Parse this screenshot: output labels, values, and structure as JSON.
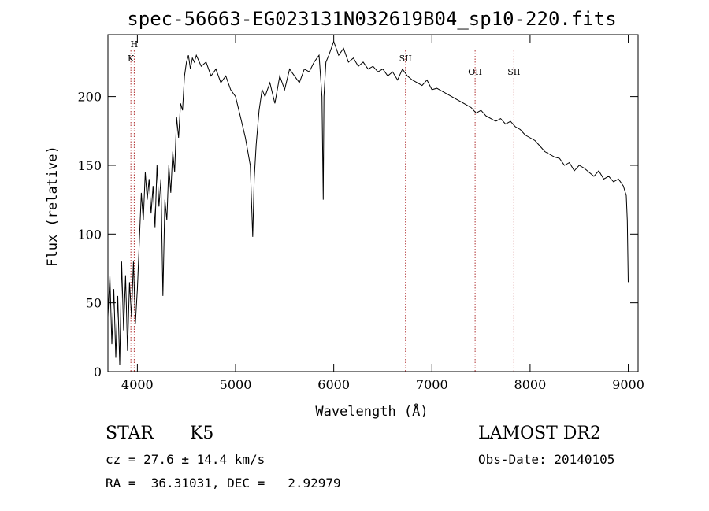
{
  "chart_data": {
    "type": "line",
    "title": "spec-56663-EG023131N032619B04_sp10-220.fits",
    "xlabel": "Wavelength (Å)",
    "ylabel": "Flux (relative)",
    "xlim": [
      3700,
      9100
    ],
    "ylim": [
      0,
      245
    ],
    "x_ticks": [
      4000,
      5000,
      6000,
      7000,
      8000,
      9000
    ],
    "y_ticks": [
      0,
      50,
      100,
      150,
      200
    ],
    "grid": false,
    "series": [
      {
        "x": [
          3700,
          3720,
          3740,
          3760,
          3780,
          3800,
          3820,
          3840,
          3860,
          3880,
          3900,
          3920,
          3940,
          3960,
          3980,
          4000,
          4020,
          4040,
          4060,
          4080,
          4100,
          4120,
          4140,
          4160,
          4180,
          4200,
          4220,
          4240,
          4260,
          4280,
          4300,
          4320,
          4340,
          4360,
          4380,
          4400,
          4420,
          4440,
          4460,
          4480,
          4500,
          4520,
          4540,
          4560,
          4580,
          4600,
          4650,
          4700,
          4750,
          4800,
          4850,
          4900,
          4950,
          5000,
          5050,
          5100,
          5150,
          5175,
          5190,
          5210,
          5240,
          5270,
          5300,
          5350,
          5400,
          5450,
          5500,
          5550,
          5600,
          5650,
          5700,
          5750,
          5800,
          5850,
          5880,
          5893,
          5900,
          5920,
          5950,
          6000,
          6050,
          6100,
          6150,
          6200,
          6250,
          6300,
          6350,
          6400,
          6450,
          6500,
          6550,
          6600,
          6650,
          6700,
          6750,
          6800,
          6850,
          6900,
          6950,
          7000,
          7050,
          7100,
          7150,
          7200,
          7250,
          7300,
          7350,
          7400,
          7450,
          7500,
          7550,
          7600,
          7650,
          7700,
          7750,
          7800,
          7850,
          7900,
          7950,
          8000,
          8050,
          8100,
          8150,
          8200,
          8250,
          8300,
          8350,
          8400,
          8450,
          8500,
          8550,
          8600,
          8650,
          8700,
          8750,
          8800,
          8850,
          8900,
          8950,
          8980,
          8990,
          9000
        ],
        "y": [
          40,
          70,
          20,
          60,
          10,
          55,
          5,
          80,
          30,
          70,
          15,
          65,
          40,
          80,
          35,
          60,
          95,
          130,
          110,
          145,
          125,
          140,
          115,
          135,
          105,
          150,
          120,
          140,
          55,
          125,
          110,
          150,
          130,
          160,
          145,
          185,
          170,
          195,
          190,
          215,
          225,
          230,
          220,
          228,
          225,
          230,
          222,
          225,
          215,
          220,
          210,
          215,
          205,
          200,
          185,
          170,
          150,
          98,
          140,
          165,
          190,
          205,
          200,
          210,
          195,
          215,
          205,
          220,
          215,
          210,
          220,
          218,
          225,
          230,
          200,
          125,
          200,
          225,
          230,
          240,
          230,
          235,
          225,
          228,
          222,
          225,
          220,
          222,
          218,
          220,
          215,
          218,
          212,
          220,
          215,
          212,
          210,
          208,
          212,
          205,
          206,
          204,
          202,
          200,
          198,
          196,
          194,
          192,
          188,
          190,
          186,
          184,
          182,
          184,
          180,
          182,
          178,
          176,
          172,
          170,
          168,
          164,
          160,
          158,
          156,
          155,
          150,
          152,
          146,
          150,
          148,
          145,
          142,
          146,
          140,
          142,
          138,
          140,
          135,
          128,
          110,
          65
        ]
      }
    ],
    "annotations": [
      {
        "label": "H",
        "x": 3968
      },
      {
        "label": "K",
        "x": 3934
      },
      {
        "label": "SII",
        "x": 6731
      },
      {
        "label": "OII",
        "x": 7440
      },
      {
        "label": "SII",
        "x": 7835
      }
    ]
  },
  "info": {
    "object_type": "STAR",
    "subclass": "K5",
    "survey": "LAMOST DR2",
    "cz": "cz = 27.6 ± 14.4 km/s",
    "obs_date": "Obs-Date: 20140105",
    "radec": "RA =  36.31031, DEC =   2.92979"
  }
}
